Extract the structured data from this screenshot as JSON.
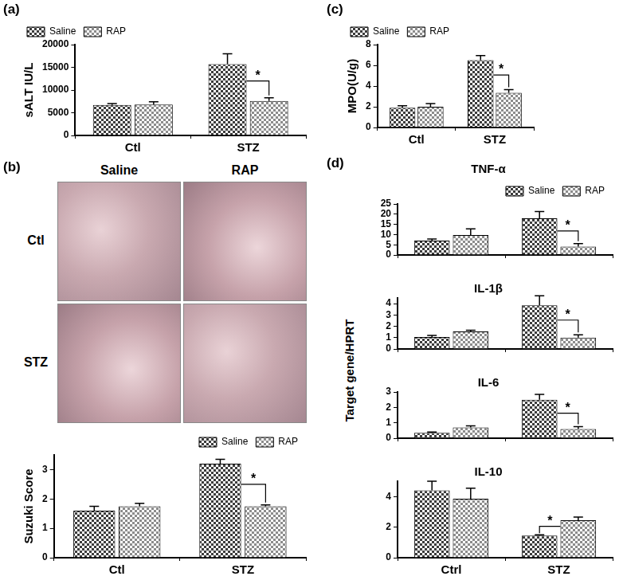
{
  "chart_data": [
    {
      "panel_label": "(a)",
      "type": "bar",
      "y_label": "sALT IU/L",
      "categories": [
        "Ctl",
        "STZ"
      ],
      "series": [
        {
          "name": "Saline",
          "color": "#3c3c3c",
          "values": [
            6700,
            15700
          ],
          "errors": [
            300,
            2300
          ]
        },
        {
          "name": "RAP",
          "color": "#8c8c8c",
          "values": [
            6800,
            7600
          ],
          "errors": [
            600,
            700
          ]
        }
      ],
      "ylim": [
        0,
        20000
      ],
      "yticks": [
        0,
        5000,
        10000,
        15000,
        20000
      ],
      "grid": false,
      "legend": "upper left",
      "annotations": [
        {
          "text": "*",
          "category": "STZ"
        }
      ]
    },
    {
      "panel_label": "(c)",
      "type": "bar",
      "y_label": "MPO(U/g)",
      "categories": [
        "Ctl",
        "STZ"
      ],
      "series": [
        {
          "name": "Saline",
          "color": "#3c3c3c",
          "values": [
            1.9,
            6.5
          ],
          "errors": [
            0.2,
            0.45
          ]
        },
        {
          "name": "RAP",
          "color": "#8c8c8c",
          "values": [
            2.0,
            3.35
          ],
          "errors": [
            0.3,
            0.3
          ]
        }
      ],
      "ylim": [
        0,
        8
      ],
      "yticks": [
        0,
        2,
        4,
        6,
        8
      ],
      "grid": false,
      "legend": "upper left",
      "annotations": [
        {
          "text": "*",
          "category": "STZ"
        }
      ]
    },
    {
      "type": "bar",
      "y_label": "Suzuki Score",
      "categories": [
        "Ctl",
        "STZ"
      ],
      "series": [
        {
          "name": "Saline",
          "color": "#3c3c3c",
          "values": [
            1.6,
            3.2
          ],
          "errors": [
            0.15,
            0.15
          ]
        },
        {
          "name": "RAP",
          "color": "#8c8c8c",
          "values": [
            1.75,
            1.75
          ],
          "errors": [
            0.1,
            0.05
          ]
        }
      ],
      "ylim": [
        0,
        3.5
      ],
      "yticks": [
        0,
        1,
        2,
        3
      ],
      "grid": false,
      "legend": "upper right",
      "annotations": [
        {
          "text": "*",
          "category": "STZ"
        }
      ]
    },
    {
      "type": "bar",
      "title": "TNF-α",
      "categories": [
        null,
        null
      ],
      "series": [
        {
          "name": "Saline",
          "color": "#3c3c3c",
          "values": [
            7,
            18
          ],
          "errors": [
            0.8,
            3.3
          ]
        },
        {
          "name": "RAP",
          "color": "#8c8c8c",
          "values": [
            9.8,
            4.1
          ],
          "errors": [
            3,
            1.5
          ]
        }
      ],
      "ylim": [
        0,
        25
      ],
      "yticks": [
        0,
        5,
        10,
        15,
        20,
        25
      ],
      "grid": false,
      "legend": "upper right",
      "annotations": [
        {
          "text": "*",
          "category": "STZ"
        }
      ]
    },
    {
      "type": "bar",
      "title": "IL-1β",
      "categories": [
        null,
        null
      ],
      "series": [
        {
          "name": "Saline",
          "color": "#3c3c3c",
          "values": [
            1.05,
            3.85
          ],
          "errors": [
            0.15,
            0.85
          ]
        },
        {
          "name": "RAP",
          "color": "#8c8c8c",
          "values": [
            1.55,
            1.0
          ],
          "errors": [
            0.1,
            0.25
          ]
        }
      ],
      "ylim": [
        0,
        4.5
      ],
      "yticks": [
        0,
        1,
        2,
        3,
        4
      ],
      "grid": false,
      "annotations": [
        {
          "text": "*",
          "category": "STZ"
        }
      ]
    },
    {
      "type": "bar",
      "title": "IL-6",
      "categories": [
        null,
        null
      ],
      "series": [
        {
          "name": "Saline",
          "color": "#3c3c3c",
          "values": [
            0.35,
            2.5
          ],
          "errors": [
            0.05,
            0.35
          ]
        },
        {
          "name": "RAP",
          "color": "#8c8c8c",
          "values": [
            0.7,
            0.6
          ],
          "errors": [
            0.1,
            0.15
          ]
        }
      ],
      "ylim": [
        0,
        3
      ],
      "yticks": [
        0,
        1,
        2,
        3
      ],
      "grid": false,
      "annotations": [
        {
          "text": "*",
          "category": "STZ"
        }
      ]
    },
    {
      "type": "bar",
      "title": "IL-10",
      "categories": [
        "Ctrl",
        "STZ"
      ],
      "series": [
        {
          "name": "Saline",
          "color": "#3c3c3c",
          "values": [
            4.4,
            1.45
          ],
          "errors": [
            0.6,
            0.05
          ]
        },
        {
          "name": "RAP",
          "color": "#8c8c8c",
          "values": [
            3.85,
            2.45
          ],
          "errors": [
            0.7,
            0.2
          ]
        }
      ],
      "ylim": [
        0,
        5
      ],
      "yticks": [
        0,
        2,
        4
      ],
      "grid": false,
      "annotations": [
        {
          "text": "*",
          "category": "STZ"
        }
      ]
    }
  ],
  "histology": {
    "panel_label": "(b)",
    "columns": [
      "Saline",
      "RAP"
    ],
    "rows": [
      "Ctl",
      "STZ"
    ]
  },
  "panel_d": {
    "panel_label": "(d)",
    "y_label": "Target gene/HPRT"
  }
}
